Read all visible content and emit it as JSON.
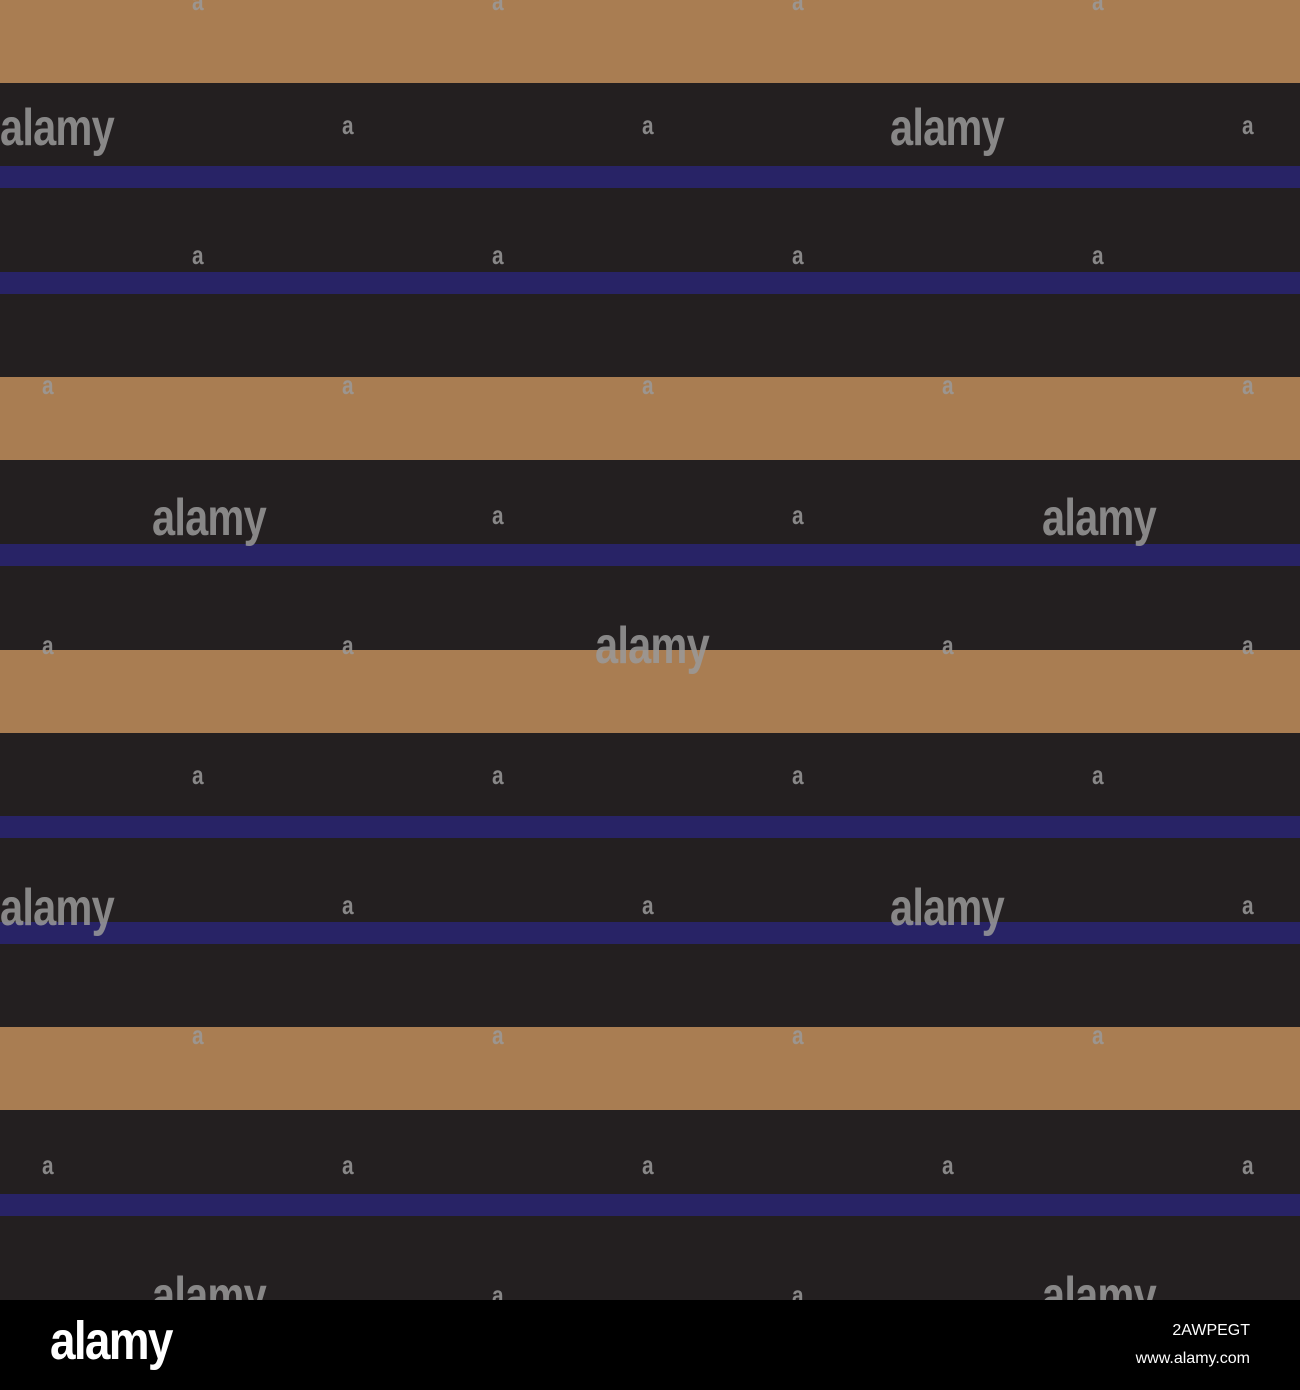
{
  "pattern": {
    "colors": {
      "background": "#231F20",
      "tan": "#A97D52",
      "navy": "#282366"
    },
    "watermark_text": "alamy",
    "watermark_mark": "a"
  },
  "footer": {
    "logo": "alamy",
    "image_id": "2AWPEGT",
    "url": "www.alamy.com"
  }
}
